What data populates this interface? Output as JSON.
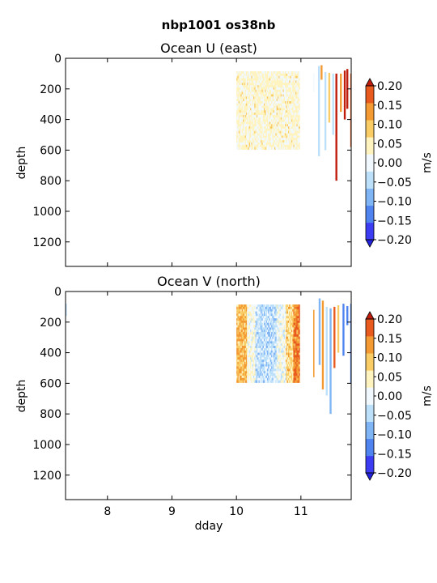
{
  "figure": {
    "suptitle": "nbp1001 os38nb"
  },
  "colors": {
    "levels": [
      -0.2,
      -0.15,
      -0.1,
      -0.05,
      0.0,
      0.05,
      0.1,
      0.15,
      0.2
    ],
    "bins": [
      "#3c3cf2",
      "#4f84f0",
      "#7fb4f5",
      "#bde0fa",
      "#f1f9ff",
      "#fff3c0",
      "#f9cc66",
      "#f49a33",
      "#e85a1e"
    ],
    "under": "#2222dd",
    "over": "#c01c0c"
  },
  "chart_data": [
    {
      "type": "heatmap",
      "title": "Ocean U (east)",
      "xlabel": "",
      "ylabel": "depth",
      "xlim": [
        7.35,
        11.78
      ],
      "ylim": [
        1360,
        0
      ],
      "xticks": [
        8,
        9,
        10,
        11
      ],
      "yticks": [
        0,
        200,
        400,
        600,
        800,
        1000,
        1200
      ],
      "show_xtick_labels": false,
      "colorbar": {
        "label": "m/s",
        "ticks": [
          "0.20",
          "0.15",
          "0.10",
          "0.05",
          "0.00",
          "−0.05",
          "−0.10",
          "−0.15",
          "−0.20"
        ]
      },
      "blocks": [
        {
          "x": [
            10.0,
            10.98
          ],
          "depth": [
            85,
            595
          ],
          "mean": 0.01,
          "spread": 0.045
        }
      ],
      "columns": [
        {
          "x": 11.2,
          "w": 0.02,
          "d0": 100,
          "d1": 220,
          "v": -0.05
        },
        {
          "x": 11.28,
          "w": 0.03,
          "d0": 50,
          "d1": 640,
          "v": -0.06
        },
        {
          "x": 11.32,
          "w": 0.03,
          "d0": 45,
          "d1": 140,
          "v": 0.12
        },
        {
          "x": 11.38,
          "w": 0.03,
          "d0": 90,
          "d1": 600,
          "v": -0.08
        },
        {
          "x": 11.44,
          "w": 0.03,
          "d0": 95,
          "d1": 420,
          "v": 0.09
        },
        {
          "x": 11.5,
          "w": 0.03,
          "d0": 100,
          "d1": 500,
          "v": -0.07
        },
        {
          "x": 11.55,
          "w": 0.03,
          "d0": 100,
          "d1": 800,
          "v": 0.22
        },
        {
          "x": 11.62,
          "w": 0.03,
          "d0": 100,
          "d1": 350,
          "v": 0.13
        },
        {
          "x": 11.68,
          "w": 0.03,
          "d0": 80,
          "d1": 400,
          "v": 0.22
        },
        {
          "x": 11.72,
          "w": 0.03,
          "d0": 70,
          "d1": 330,
          "v": 0.23
        },
        {
          "x": 11.77,
          "w": 0.01,
          "d0": 100,
          "d1": 580,
          "v": 0.18
        }
      ]
    },
    {
      "type": "heatmap",
      "title": "Ocean V (north)",
      "xlabel": "dday",
      "ylabel": "depth",
      "xlim": [
        7.35,
        11.78
      ],
      "ylim": [
        1360,
        0
      ],
      "xticks": [
        8,
        9,
        10,
        11
      ],
      "yticks": [
        0,
        200,
        400,
        600,
        800,
        1000,
        1200
      ],
      "show_xtick_labels": true,
      "colorbar": {
        "label": "m/s",
        "ticks": [
          "0.20",
          "0.15",
          "0.10",
          "0.05",
          "0.00",
          "−0.05",
          "−0.10",
          "−0.15",
          "−0.20"
        ]
      },
      "blocks": [
        {
          "x": [
            10.0,
            10.98
          ],
          "depth": [
            85,
            595
          ],
          "mean": 0.0,
          "spread": 0.05,
          "edges": true
        }
      ],
      "columns": [
        {
          "x": 7.36,
          "w": 0.02,
          "d0": 80,
          "d1": 160,
          "v": -0.09
        },
        {
          "x": 11.2,
          "w": 0.02,
          "d0": 120,
          "d1": 560,
          "v": 0.14
        },
        {
          "x": 11.29,
          "w": 0.03,
          "d0": 45,
          "d1": 480,
          "v": -0.11
        },
        {
          "x": 11.34,
          "w": 0.03,
          "d0": 60,
          "d1": 640,
          "v": 0.12
        },
        {
          "x": 11.4,
          "w": 0.03,
          "d0": 100,
          "d1": 680,
          "v": -0.09
        },
        {
          "x": 11.46,
          "w": 0.03,
          "d0": 110,
          "d1": 800,
          "v": -0.13
        },
        {
          "x": 11.52,
          "w": 0.03,
          "d0": 100,
          "d1": 500,
          "v": 0.16
        },
        {
          "x": 11.58,
          "w": 0.03,
          "d0": 90,
          "d1": 400,
          "v": 0.08
        },
        {
          "x": 11.66,
          "w": 0.03,
          "d0": 80,
          "d1": 420,
          "v": -0.2
        },
        {
          "x": 11.72,
          "w": 0.03,
          "d0": 95,
          "d1": 220,
          "v": -0.19
        },
        {
          "x": 11.77,
          "w": 0.01,
          "d0": 80,
          "d1": 600,
          "v": -0.16
        }
      ]
    }
  ]
}
